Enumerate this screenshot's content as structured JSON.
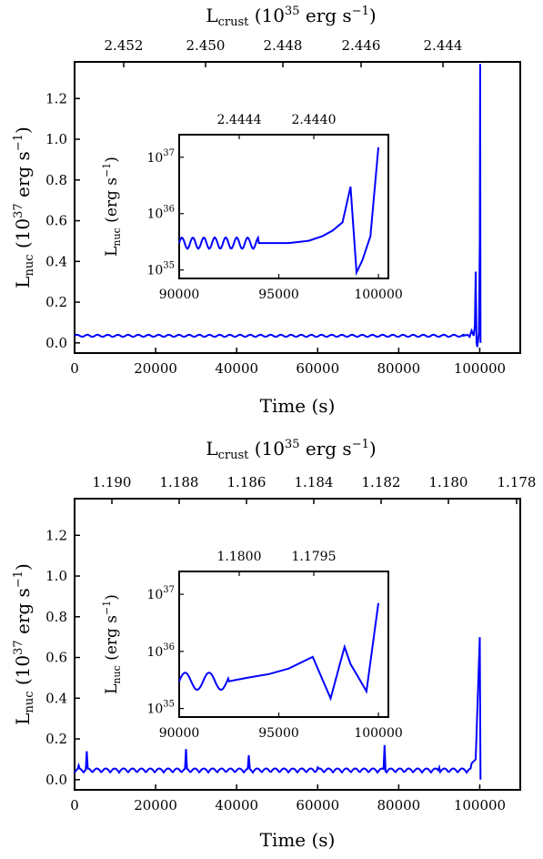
{
  "chart_data": [
    {
      "type": "line",
      "panel": "top",
      "xlabel": "Time (s)",
      "ylabel": "L_nuc (10^37 erg s^-1)",
      "top_xlabel": "L_crust (10^35 erg s^-1)",
      "xlim": [
        0,
        110000
      ],
      "ylim": [
        -0.05,
        1.38
      ],
      "xticks": [
        "0",
        "20000",
        "40000",
        "60000",
        "80000",
        "100000"
      ],
      "yticks": [
        "0.0",
        "0.2",
        "0.4",
        "0.6",
        "0.8",
        "1.0",
        "1.2"
      ],
      "top_ticks": [
        "2.452",
        "2.450",
        "2.448",
        "2.446",
        "2.444"
      ],
      "grid": false,
      "color": "#0000ff",
      "series": [
        {
          "x": [
            0,
            96000,
            97000,
            97500,
            98000,
            98500,
            98800,
            99000,
            99200,
            99400,
            99800,
            100000,
            100100,
            100200
          ],
          "values": [
            0.035,
            0.035,
            0.04,
            0.03,
            0.06,
            0.035,
            0.085,
            0.35,
            0.0,
            -0.02,
            0.05,
            0.5,
            1.37,
            0.0
          ]
        }
      ],
      "inset": {
        "xlim": [
          90000,
          100500
        ],
        "ylog": true,
        "yticks": [
          "10^35",
          "10^36",
          "10^37"
        ],
        "xticks": [
          "90000",
          "95000",
          "100000"
        ],
        "top_ticks": [
          "2.4444",
          "2.4440"
        ],
        "ylabel": "L_nuc (erg s^-1)",
        "x": [
          90000,
          92000,
          94000,
          95500,
          96500,
          97200,
          97700,
          98200,
          98600,
          98900,
          99200,
          99600,
          100000
        ],
        "values": [
          3e+35,
          3e+35,
          3e+35,
          3e+35,
          3.3e+35,
          4e+35,
          5e+35,
          7e+35,
          3e+36,
          9e+34,
          1.5e+35,
          4e+35,
          1.5e+37
        ]
      }
    },
    {
      "type": "line",
      "panel": "bottom",
      "xlabel": "Time (s)",
      "ylabel": "L_nuc (10^37 erg s^-1)",
      "top_xlabel": "L_crust (10^35 erg s^-1)",
      "xlim": [
        0,
        110000
      ],
      "ylim": [
        -0.05,
        1.38
      ],
      "xticks": [
        "0",
        "20000",
        "40000",
        "60000",
        "80000",
        "100000"
      ],
      "yticks": [
        "0.0",
        "0.2",
        "0.4",
        "0.6",
        "0.8",
        "1.0",
        "1.2"
      ],
      "top_ticks": [
        "1.190",
        "1.188",
        "1.186",
        "1.184",
        "1.182",
        "1.180",
        "1.178"
      ],
      "grid": false,
      "color": "#0000ff",
      "series": [
        {
          "x": [
            0,
            1000,
            2500,
            3000,
            10000,
            27000,
            27500,
            43000,
            60000,
            76000,
            76500,
            90000,
            98000,
            99000,
            100000,
            100200
          ],
          "values": [
            0.03,
            0.07,
            0.03,
            0.14,
            0.05,
            0.04,
            0.15,
            0.12,
            0.06,
            0.05,
            0.17,
            0.06,
            0.08,
            0.1,
            0.7,
            0.0
          ]
        }
      ],
      "inset": {
        "xlim": [
          90000,
          100500
        ],
        "ylog": true,
        "yticks": [
          "10^35",
          "10^36",
          "10^37"
        ],
        "xticks": [
          "90000",
          "95000",
          "100000"
        ],
        "top_ticks": [
          "1.1800",
          "1.1795"
        ],
        "ylabel": "L_nuc (erg s^-1)",
        "x": [
          90000,
          91000,
          92500,
          93500,
          94500,
          95500,
          96700,
          97600,
          98300,
          98600,
          99000,
          99400,
          100000
        ],
        "values": [
          3e+35,
          2.5e+35,
          3e+35,
          3.5e+35,
          4e+35,
          5e+35,
          8e+35,
          1.5e+35,
          1.2e+36,
          6e+35,
          3.5e+35,
          2e+35,
          7e+36
        ]
      }
    }
  ]
}
